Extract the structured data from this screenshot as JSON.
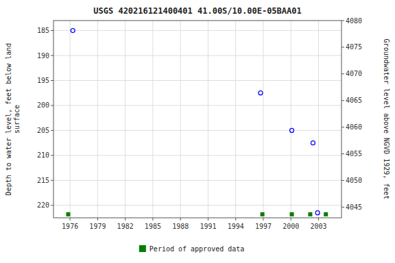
{
  "chart_data": {
    "type": "scatter",
    "title": "USGS 420216121400401 41.00S/10.00E-05BAA01",
    "y_label": "Depth to water level, feet below land\n surface",
    "y2_label": "Groundwater level above NGVD 1929, feet",
    "series": [
      {
        "x": [
          1976.3,
          1996.7,
          2000.1,
          2002.4,
          2002.9
        ],
        "values": [
          185.0,
          197.5,
          205.0,
          207.5,
          221.5
        ],
        "color": "blue",
        "marker": "open-circle"
      },
      {
        "name": "Period of approved data",
        "x": [
          1975.8,
          1996.9,
          2000.1,
          2002.1,
          2003.8
        ],
        "values": [
          221.8,
          221.8,
          221.8,
          221.8,
          221.8
        ],
        "color": "#008000",
        "marker": "square"
      }
    ],
    "xlim": [
      1974.2,
      2005.5
    ],
    "xticks": [
      1976,
      1979,
      1982,
      1985,
      1988,
      1991,
      1994,
      1997,
      2000,
      2003
    ],
    "ylim": [
      222.5,
      183.0
    ],
    "yticks": [
      185,
      190,
      195,
      200,
      205,
      210,
      215,
      220
    ],
    "y2lim": [
      4043,
      4080
    ],
    "y2ticks": [
      4080,
      4075,
      4070,
      4065,
      4060,
      4055,
      4050,
      4045
    ],
    "grid": true,
    "legend": "bottom"
  }
}
